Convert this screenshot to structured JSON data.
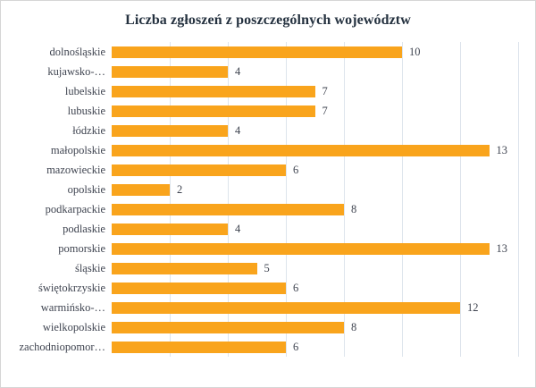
{
  "window": {
    "background_color": "#ffffff",
    "border_color": "#d6d6d6"
  },
  "chart_data": {
    "type": "bar",
    "orientation": "horizontal",
    "title": "Liczba zgłoszeń z poszczególnych województw",
    "categories": [
      "dolnośląskie",
      "kujawsko-…",
      "lubelskie",
      "lubuskie",
      "łódzkie",
      "małopolskie",
      "mazowieckie",
      "opolskie",
      "podkarpackie",
      "podlaskie",
      "pomorskie",
      "śląskie",
      "świętokrzyskie",
      "warmińsko-…",
      "wielkopolskie",
      "zachodniopomor…"
    ],
    "values": [
      10,
      4,
      7,
      7,
      4,
      13,
      6,
      2,
      8,
      4,
      13,
      5,
      6,
      12,
      8,
      6
    ],
    "value_labels": [
      "10",
      "4",
      "7",
      "7",
      "4",
      "13",
      "6",
      "2",
      "8",
      "4",
      "13",
      "5",
      "6",
      "12",
      "8",
      "6"
    ],
    "xlim": [
      0,
      14
    ],
    "gridline_values": [
      2,
      4,
      6,
      8,
      10,
      12,
      14
    ],
    "grid": true,
    "legend": false,
    "xlabel": "",
    "ylabel": "",
    "bar_color": "#f9a41c",
    "gridline_color": "#dde4ec",
    "title_color": "#24313f",
    "label_color": "#3f4450"
  }
}
